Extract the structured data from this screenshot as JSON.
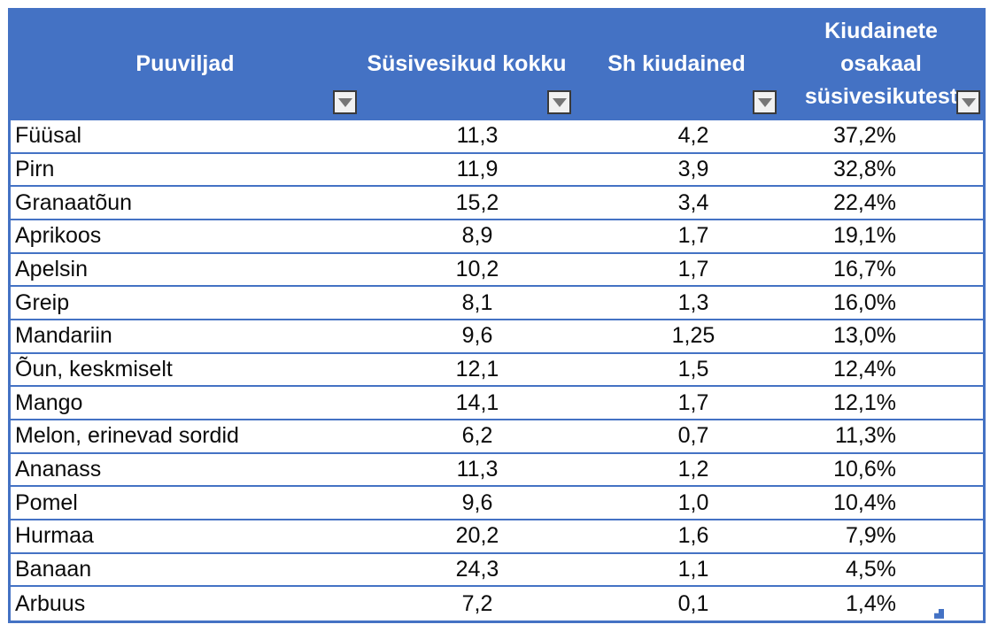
{
  "table": {
    "columns": [
      {
        "label": "Puuviljad"
      },
      {
        "label": "Süsivesikud kokku"
      },
      {
        "label": "Sh kiudained"
      },
      {
        "label": "Kiudainete osakaal süsivesikutest",
        "lines": [
          "Kiudainete",
          "osakaal",
          "süsivesikutest"
        ]
      }
    ],
    "rows": [
      [
        "Füüsal",
        "11,3",
        "4,2",
        "37,2%"
      ],
      [
        "Pirn",
        "11,9",
        "3,9",
        "32,8%"
      ],
      [
        "Granaatõun",
        "15,2",
        "3,4",
        "22,4%"
      ],
      [
        "Aprikoos",
        "8,9",
        "1,7",
        "19,1%"
      ],
      [
        "Apelsin",
        "10,2",
        "1,7",
        "16,7%"
      ],
      [
        "Greip",
        "8,1",
        "1,3",
        "16,0%"
      ],
      [
        "Mandariin",
        "9,6",
        "1,25",
        "13,0%"
      ],
      [
        "Õun, keskmiselt",
        "12,1",
        "1,5",
        "12,4%"
      ],
      [
        "Mango",
        "14,1",
        "1,7",
        "12,1%"
      ],
      [
        "Melon, erinevad sordid",
        "6,2",
        "0,7",
        "11,3%"
      ],
      [
        "Ananass",
        "11,3",
        "1,2",
        "10,6%"
      ],
      [
        "Pomel",
        "9,6",
        "1,0",
        "10,4%"
      ],
      [
        "Hurmaa",
        "20,2",
        "1,6",
        "7,9%"
      ],
      [
        "Banaan",
        "24,3",
        "1,1",
        "4,5%"
      ],
      [
        "Arbuus",
        "7,2",
        "0,1",
        "1,4%"
      ]
    ],
    "colors": {
      "header_bg": "#4472C4",
      "border": "#4472C4",
      "header_text": "#FFFFFF",
      "body_text": "#0B0B0B",
      "filter_button_bg": "#F1F1F1",
      "filter_button_border": "#3A3A3A",
      "filter_arrow": "#767676"
    }
  }
}
